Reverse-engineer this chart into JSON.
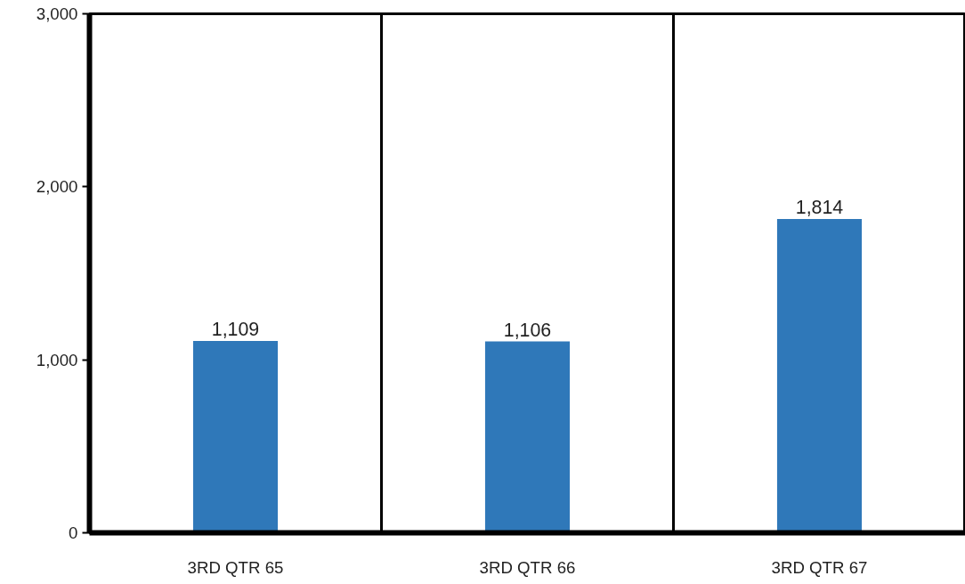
{
  "chart_data": {
    "type": "bar",
    "categories": [
      "3RD QTR 65",
      "3RD QTR 66",
      "3RD QTR 67"
    ],
    "values": [
      1109,
      1106,
      1814
    ],
    "value_labels": [
      "1,109",
      "1,106",
      "1,814"
    ],
    "color": "#2f78b9",
    "ylim": [
      0,
      3000
    ],
    "yticks": [
      {
        "value": 0,
        "label": "0"
      },
      {
        "value": 1000,
        "label": "1,000"
      },
      {
        "value": 2000,
        "label": "2,000"
      },
      {
        "value": 3000,
        "label": "3,000"
      }
    ],
    "grid": false
  }
}
